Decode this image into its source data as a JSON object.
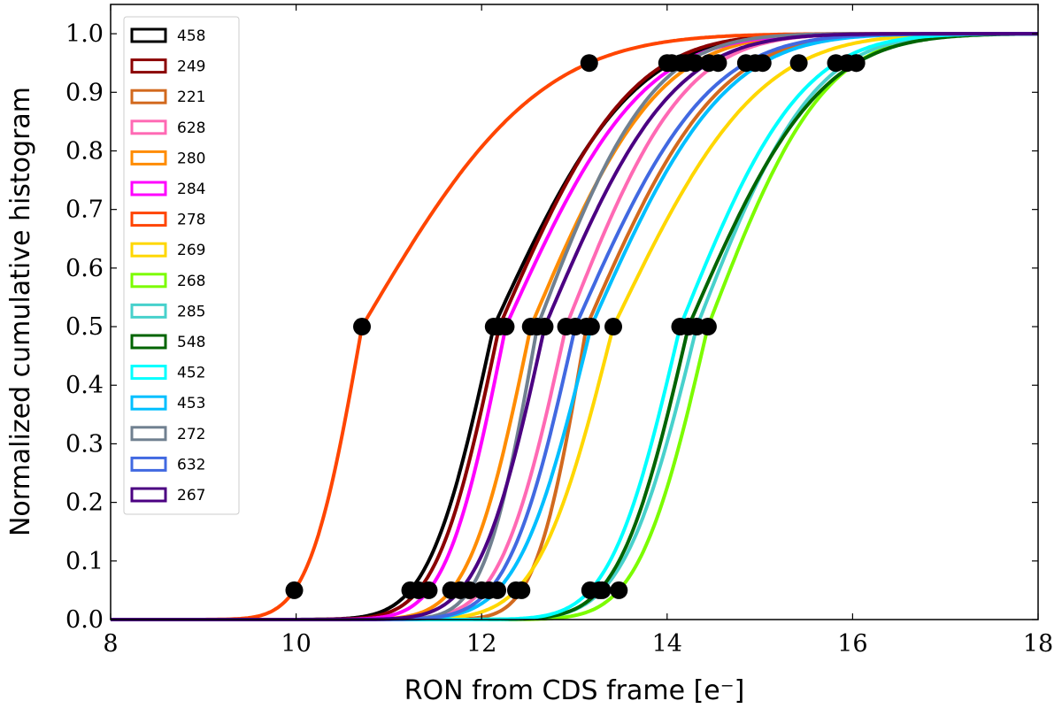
{
  "chart_data": {
    "type": "line",
    "title": "",
    "xlabel": "RON from CDS frame [e⁻]",
    "ylabel": "Normalized cumulative histogram",
    "xlim": [
      8,
      18
    ],
    "ylim": [
      0,
      1.05
    ],
    "xticks": [
      8,
      10,
      12,
      14,
      16,
      18
    ],
    "yticks": [
      0.0,
      0.1,
      0.2,
      0.3,
      0.4,
      0.5,
      0.6,
      0.7,
      0.8,
      0.9,
      1.0
    ],
    "grid": false,
    "legend_position": "top-left",
    "marker_levels": [
      0.05,
      0.5,
      0.95
    ],
    "series": [
      {
        "name": "458",
        "color": "#000000",
        "q05": 11.23,
        "median": 12.13,
        "q95": 14.05
      },
      {
        "name": "249",
        "color": "#8b0000",
        "q05": 11.32,
        "median": 12.19,
        "q95": 14.0
      },
      {
        "name": "221",
        "color": "#d2691e",
        "q05": 12.43,
        "median": 13.13,
        "q95": 14.95
      },
      {
        "name": "628",
        "color": "#ff69b4",
        "q05": 12.0,
        "median": 12.91,
        "q95": 14.55
      },
      {
        "name": "280",
        "color": "#ff8c00",
        "q05": 11.67,
        "median": 12.53,
        "q95": 14.3
      },
      {
        "name": "284",
        "color": "#ff00ff",
        "q05": 11.43,
        "median": 12.26,
        "q95": 14.15
      },
      {
        "name": "278",
        "color": "#ff4500",
        "q05": 9.98,
        "median": 10.71,
        "q95": 13.16
      },
      {
        "name": "269",
        "color": "#ffd700",
        "q05": 12.37,
        "median": 13.42,
        "q95": 15.42
      },
      {
        "name": "268",
        "color": "#7cfc00",
        "q05": 13.48,
        "median": 14.44,
        "q95": 16.04
      },
      {
        "name": "285",
        "color": "#48d1cc",
        "q05": 13.3,
        "median": 14.32,
        "q95": 15.94
      },
      {
        "name": "548",
        "color": "#006400",
        "q05": 13.27,
        "median": 14.23,
        "q95": 16.04
      },
      {
        "name": "452",
        "color": "#00ffff",
        "q05": 13.17,
        "median": 14.14,
        "q95": 15.82
      },
      {
        "name": "453",
        "color": "#00bfff",
        "q05": 12.17,
        "median": 13.18,
        "q95": 15.03
      },
      {
        "name": "272",
        "color": "#708090",
        "q05": 11.87,
        "median": 12.6,
        "q95": 14.2
      },
      {
        "name": "632",
        "color": "#4169e1",
        "q05": 12.08,
        "median": 13.01,
        "q95": 14.85
      },
      {
        "name": "267",
        "color": "#4b0082",
        "q05": 11.77,
        "median": 12.68,
        "q95": 14.45
      }
    ]
  }
}
